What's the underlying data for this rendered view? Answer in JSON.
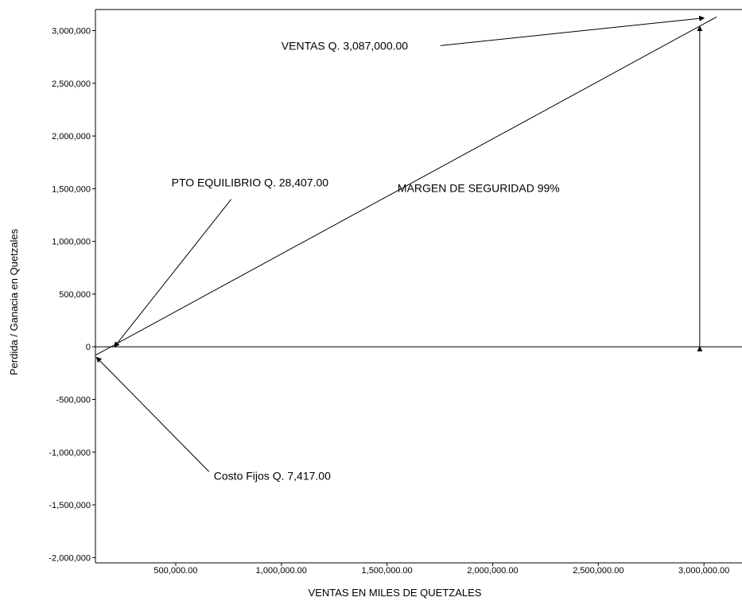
{
  "chart_data": {
    "type": "line",
    "title": "",
    "xlabel": "VENTAS EN MILES DE QUETZALES",
    "ylabel": "Perdida / Ganacia en Quetzales",
    "xlim": [
      120000,
      3180000
    ],
    "ylim": [
      -2050000,
      3200000
    ],
    "x_ticks": [
      {
        "value": 500000,
        "label": "500,000.00"
      },
      {
        "value": 1000000,
        "label": "1,000,000.00"
      },
      {
        "value": 1500000,
        "label": "1,500,000.00"
      },
      {
        "value": 2000000,
        "label": "2,000,000.00"
      },
      {
        "value": 2500000,
        "label": "2,500,000.00"
      },
      {
        "value": 3000000,
        "label": "3,000,000.00"
      }
    ],
    "y_ticks": [
      {
        "value": 3000000,
        "label": "3,000,000"
      },
      {
        "value": 2500000,
        "label": "2,500,000"
      },
      {
        "value": 2000000,
        "label": "2,000,000"
      },
      {
        "value": 1500000,
        "label": "1,500,000"
      },
      {
        "value": 1000000,
        "label": "1,000,000"
      },
      {
        "value": 500000,
        "label": "500,000"
      },
      {
        "value": 0,
        "label": "0"
      },
      {
        "value": -500000,
        "label": "-500,000"
      },
      {
        "value": -1000000,
        "label": "-1,000,000"
      },
      {
        "value": -1500000,
        "label": "-1,500,000"
      },
      {
        "value": -2000000,
        "label": "-2,000,000"
      }
    ],
    "grid": false,
    "legend": "none",
    "series": [
      {
        "x": [
          120000,
          3060000
        ],
        "y": [
          -80000,
          3130000
        ]
      }
    ],
    "zero_line": true,
    "margin_arrow": {
      "x": 2980000,
      "y_from": 0,
      "y_to": 3040000
    },
    "annotations": [
      {
        "text": "VENTAS Q. 3,087,000.00",
        "at": [
          1000000,
          2820000
        ],
        "arrow_to": [
          3000000,
          3120000
        ]
      },
      {
        "text": "PTO EQUILIBRIO Q. 28,407.00",
        "at": [
          480000,
          1520000
        ],
        "arrow_to": [
          210000,
          0
        ]
      },
      {
        "text": "MARGEN DE SEGURIDAD  99%",
        "at": [
          1550000,
          1470000
        ]
      },
      {
        "text": "Costo  Fijos Q. 7,417.00",
        "at": [
          680000,
          -1260000
        ],
        "arrow_to": [
          125000,
          -100000
        ]
      }
    ]
  }
}
